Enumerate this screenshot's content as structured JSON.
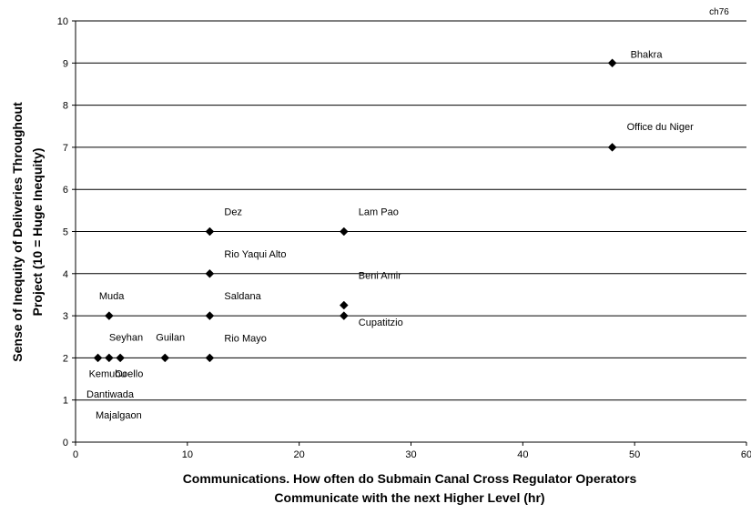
{
  "chart_data": {
    "type": "scatter",
    "corner_label": "ch76",
    "xlabel_lines": [
      "Communications.  How often do Submain Canal Cross Regulator Operators",
      "Communicate with the next Higher Level (hr)"
    ],
    "ylabel_lines": [
      "Sense of Inequity of Deliveries Throughout",
      "Project (10 = Huge Inequity)"
    ],
    "xlim": [
      0,
      60
    ],
    "ylim": [
      0,
      10
    ],
    "xticks": [
      0,
      10,
      20,
      30,
      40,
      50,
      60
    ],
    "yticks": [
      0,
      1,
      2,
      3,
      4,
      5,
      6,
      7,
      8,
      9,
      10
    ],
    "grid": "horizontal",
    "marker": "diamond",
    "color": "#000000",
    "points": [
      {
        "x": 48,
        "y": 9,
        "name": "Bhakra"
      },
      {
        "x": 48,
        "y": 7,
        "name": "Office du Niger"
      },
      {
        "x": 12,
        "y": 5,
        "name": "Dez"
      },
      {
        "x": 24,
        "y": 5,
        "name": "Lam Pao"
      },
      {
        "x": 12,
        "y": 4,
        "name": "Rio Yaqui Alto"
      },
      {
        "x": 24,
        "y": 3.25,
        "name": "Beni Amir"
      },
      {
        "x": 24,
        "y": 3,
        "name": "Cupatitzio"
      },
      {
        "x": 12,
        "y": 3,
        "name": "Saldana"
      },
      {
        "x": 3,
        "y": 3,
        "name": "Muda"
      },
      {
        "x": 12,
        "y": 2,
        "name": "Rio Mayo"
      },
      {
        "x": 8,
        "y": 2,
        "name": "Guilan"
      },
      {
        "x": 4,
        "y": 2,
        "name": "Coello"
      },
      {
        "x": 3,
        "y": 2,
        "name": "Seyhan"
      },
      {
        "x": 2,
        "y": 2,
        "name": "Kemubu"
      }
    ],
    "extra_labels": [
      "Dantiwada",
      "Majalgaon"
    ]
  }
}
